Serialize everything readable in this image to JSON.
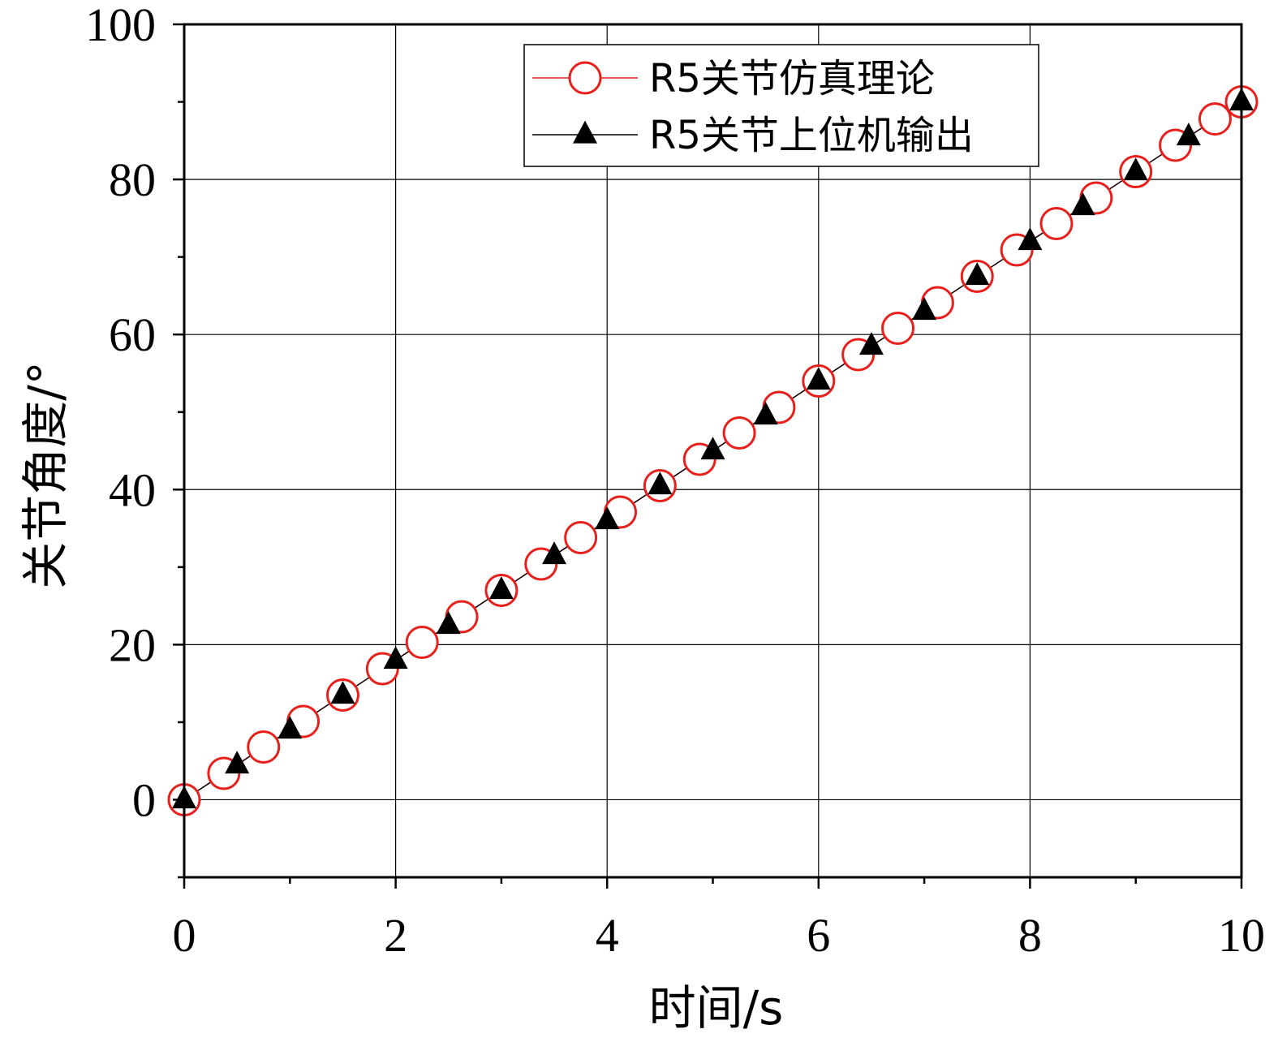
{
  "chart_data": {
    "type": "line",
    "xlabel": "时间/s",
    "ylabel": "关节角度/°",
    "xlim": [
      0,
      10
    ],
    "ylim": [
      -10,
      100
    ],
    "xticks": [
      0,
      2,
      4,
      6,
      8,
      10
    ],
    "yticks": [
      0,
      20,
      40,
      60,
      80,
      100
    ],
    "grid": true,
    "legend_position": "top-right",
    "series": [
      {
        "name": "R5关节仿真理论",
        "marker": "open-circle",
        "color": "#e8201c",
        "x": [
          0,
          0.375,
          0.75,
          1.125,
          1.5,
          1.875,
          2.25,
          2.625,
          3.0,
          3.375,
          3.75,
          4.125,
          4.5,
          4.875,
          5.25,
          5.625,
          6.0,
          6.375,
          6.75,
          7.125,
          7.5,
          7.875,
          8.25,
          8.625,
          9.0,
          9.375,
          9.75,
          10.0
        ],
        "y": [
          0,
          3.4,
          6.8,
          10.1,
          13.5,
          16.9,
          20.3,
          23.6,
          27.0,
          30.4,
          33.8,
          37.1,
          40.5,
          43.9,
          47.3,
          50.6,
          54.0,
          57.4,
          60.8,
          64.1,
          67.5,
          70.9,
          74.3,
          77.6,
          81.0,
          84.4,
          87.8,
          90.0
        ]
      },
      {
        "name": "R5关节上位机输出",
        "marker": "filled-triangle",
        "color": "#000000",
        "x": [
          0,
          0.5,
          1.0,
          1.5,
          2.0,
          2.5,
          3.0,
          3.5,
          4.0,
          4.5,
          5.0,
          5.5,
          6.0,
          6.5,
          7.0,
          7.5,
          8.0,
          8.5,
          9.0,
          9.5,
          10.0
        ],
        "y": [
          0,
          4.5,
          9.0,
          13.5,
          18.0,
          22.5,
          27.0,
          31.5,
          36.0,
          40.5,
          45.0,
          49.5,
          54.0,
          58.5,
          63.0,
          67.5,
          72.0,
          76.5,
          81.0,
          85.5,
          90.0
        ]
      }
    ]
  }
}
